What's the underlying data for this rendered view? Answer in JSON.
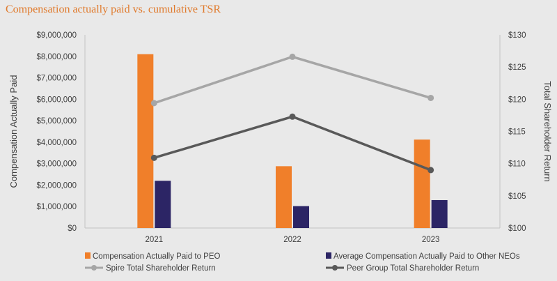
{
  "chart_data": {
    "type": "bar+line",
    "title": "Compensation actually paid vs. cumulative TSR",
    "categories": [
      "2021",
      "2022",
      "2023"
    ],
    "left_axis": {
      "label": "Compensation Actually Paid",
      "range": [
        0,
        9000000
      ],
      "ticks": [
        0,
        1000000,
        2000000,
        3000000,
        4000000,
        5000000,
        6000000,
        7000000,
        8000000,
        9000000
      ],
      "tick_labels": [
        "$0",
        "$1,000,000",
        "$2,000,000",
        "$3,000,000",
        "$4,000,000",
        "$5,000,000",
        "$6,000,000",
        "$7,000,000",
        "$8,000,000",
        "$9,000,000"
      ]
    },
    "right_axis": {
      "label": "Total Shareholder Return",
      "range": [
        100,
        130
      ],
      "ticks": [
        100,
        105,
        110,
        115,
        120,
        125,
        130
      ],
      "tick_labels": [
        "$100",
        "$105",
        "$110",
        "$115",
        "$120",
        "$125",
        "$130"
      ]
    },
    "bar_series": [
      {
        "name": "Compensation Actually Paid to PEO",
        "color": "#f07f2a",
        "values": [
          8100000,
          2880000,
          4120000
        ]
      },
      {
        "name": "Average Compensation Actually Paid to Other NEOs",
        "color": "#2c2565",
        "values": [
          2200000,
          1020000,
          1300000
        ]
      }
    ],
    "line_series": [
      {
        "name": "Spire Total Shareholder Return",
        "color": "#a6a6a6",
        "values": [
          119.4,
          126.6,
          120.2
        ]
      },
      {
        "name": "Peer Group Total Shareholder Return",
        "color": "#595959",
        "values": [
          110.9,
          117.3,
          109.0
        ]
      }
    ],
    "legend_position": "bottom"
  }
}
